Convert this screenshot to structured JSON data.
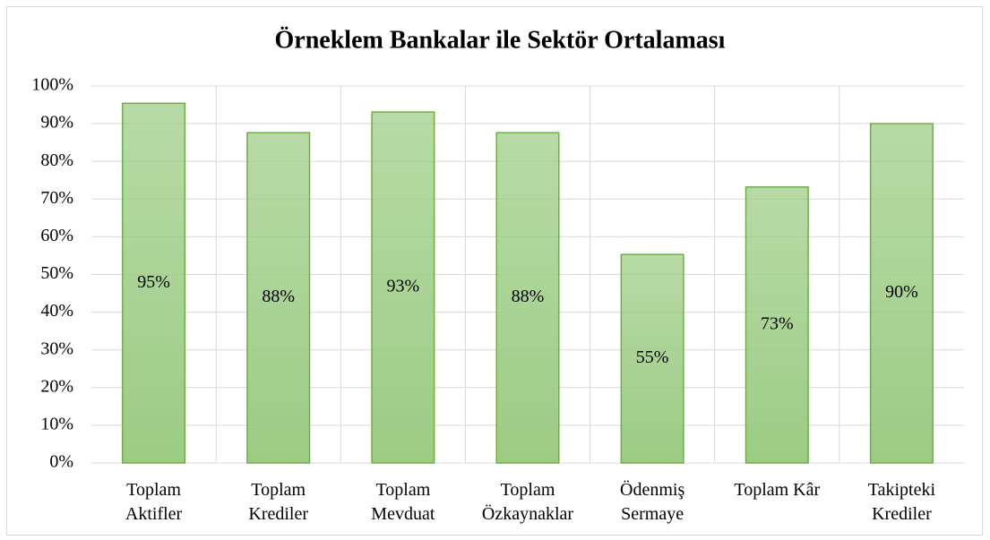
{
  "chart_data": {
    "type": "bar",
    "title": "Örneklem Bankalar ile Sektör Ortalaması",
    "categories": [
      "Toplam\nAktifler",
      "Toplam\nKrediler",
      "Toplam\nMevduat",
      "Toplam\nÖzkaynaklar",
      "Ödenmiş\nSermaye",
      "Toplam Kâr",
      "Takipteki\nKrediler"
    ],
    "values": [
      95.4,
      87.6,
      93.1,
      87.6,
      55.3,
      73.2,
      90.0
    ],
    "value_labels": [
      "95%",
      "88%",
      "93%",
      "88%",
      "55%",
      "73%",
      "90%"
    ],
    "color": "#9ccc84",
    "edge_color": "#70ad47",
    "ylim": [
      0,
      100
    ],
    "yticks": [
      {
        "value": 0,
        "label": "0%"
      },
      {
        "value": 10,
        "label": "10%"
      },
      {
        "value": 20,
        "label": "20%"
      },
      {
        "value": 30,
        "label": "30%"
      },
      {
        "value": 40,
        "label": "40%"
      },
      {
        "value": 50,
        "label": "50%"
      },
      {
        "value": 60,
        "label": "60%"
      },
      {
        "value": 70,
        "label": "70%"
      },
      {
        "value": 80,
        "label": "80%"
      },
      {
        "value": 90,
        "label": "90%"
      },
      {
        "value": 100,
        "label": "100%"
      }
    ],
    "grid": true
  }
}
